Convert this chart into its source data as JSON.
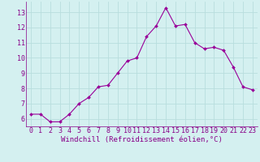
{
  "x": [
    0,
    1,
    2,
    3,
    4,
    5,
    6,
    7,
    8,
    9,
    10,
    11,
    12,
    13,
    14,
    15,
    16,
    17,
    18,
    19,
    20,
    21,
    22,
    23
  ],
  "y": [
    6.3,
    6.3,
    5.8,
    5.8,
    6.3,
    7.0,
    7.4,
    8.1,
    8.2,
    9.0,
    9.8,
    10.0,
    11.4,
    12.1,
    13.3,
    12.1,
    12.2,
    11.0,
    10.6,
    10.7,
    10.5,
    9.4,
    8.1,
    7.9
  ],
  "line_color": "#990099",
  "marker": "D",
  "marker_size": 2.0,
  "bg_color": "#d4f0f0",
  "grid_color": "#b8dede",
  "xlabel": "Windchill (Refroidissement éolien,°C)",
  "xlabel_color": "#880088",
  "xlabel_fontsize": 6.5,
  "tick_color": "#880088",
  "tick_fontsize": 6.0,
  "ylim": [
    5.5,
    13.7
  ],
  "xlim": [
    -0.5,
    23.5
  ],
  "yticks": [
    6,
    7,
    8,
    9,
    10,
    11,
    12,
    13
  ],
  "xticks": [
    0,
    1,
    2,
    3,
    4,
    5,
    6,
    7,
    8,
    9,
    10,
    11,
    12,
    13,
    14,
    15,
    16,
    17,
    18,
    19,
    20,
    21,
    22,
    23
  ],
  "border_color": "#9999bb"
}
